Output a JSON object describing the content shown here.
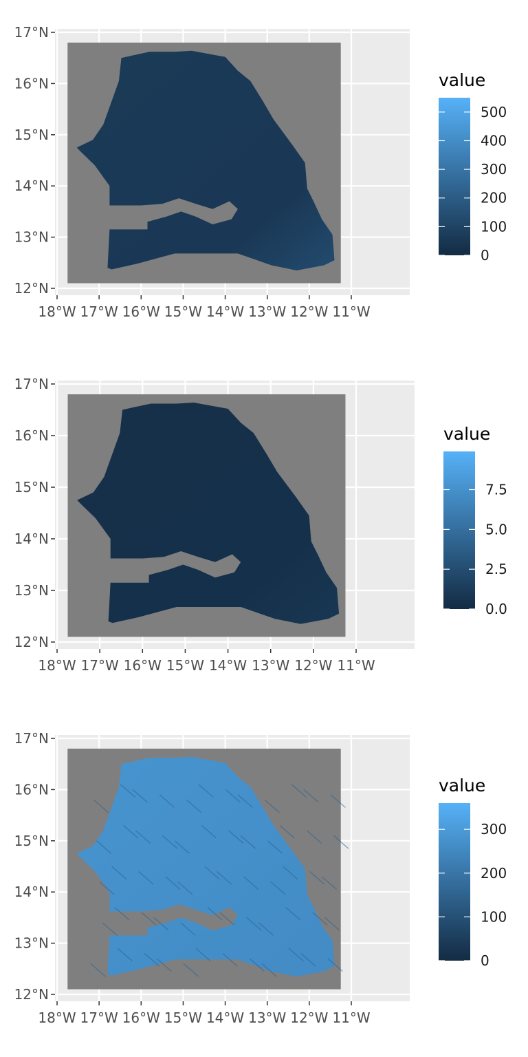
{
  "colors": {
    "panel_background": "#ebebeb",
    "gridline": "#ffffff",
    "na_value": "#7f7f7f",
    "scale_low": "#132b43",
    "scale_high": "#56b1f7",
    "tick_text": "#4d4d4d"
  },
  "chart_data": [
    {
      "type": "heatmap",
      "legend_title": "value",
      "legend_breaks": [
        {
          "value": 0,
          "label": "0"
        },
        {
          "value": 100,
          "label": "100"
        },
        {
          "value": 200,
          "label": "200"
        },
        {
          "value": 300,
          "label": "300"
        },
        {
          "value": 400,
          "label": "400"
        },
        {
          "value": 500,
          "label": "500"
        }
      ],
      "value_range": [
        0,
        550
      ],
      "x_ticks": [
        "18°W",
        "17°W",
        "16°W",
        "15°W",
        "14°W",
        "13°W",
        "12°W",
        "11°W"
      ],
      "y_ticks": [
        "12°N",
        "13°N",
        "14°N",
        "15°N",
        "16°N",
        "17°N"
      ],
      "xlim": [
        -18,
        -11
      ],
      "ylim": [
        12,
        17
      ],
      "typical_value": 60,
      "max_value": 550
    },
    {
      "type": "heatmap",
      "legend_title": "value",
      "legend_breaks": [
        {
          "value": 0,
          "label": "0.0"
        },
        {
          "value": 2.5,
          "label": "2.5"
        },
        {
          "value": 5.0,
          "label": "5.0"
        },
        {
          "value": 7.5,
          "label": "7.5"
        }
      ],
      "value_range": [
        0,
        9.9
      ],
      "x_ticks": [
        "18°W",
        "17°W",
        "16°W",
        "15°W",
        "14°W",
        "13°W",
        "12°W",
        "11°W"
      ],
      "y_ticks": [
        "12°N",
        "13°N",
        "14°N",
        "15°N",
        "16°N",
        "17°N"
      ],
      "xlim": [
        -18,
        -11
      ],
      "ylim": [
        12,
        17
      ],
      "typical_value": 0.4,
      "max_value": 9.9
    },
    {
      "type": "heatmap",
      "legend_title": "value",
      "legend_breaks": [
        {
          "value": 0,
          "label": "0"
        },
        {
          "value": 100,
          "label": "100"
        },
        {
          "value": 200,
          "label": "200"
        },
        {
          "value": 300,
          "label": "300"
        }
      ],
      "value_range": [
        0,
        360
      ],
      "x_ticks": [
        "18°W",
        "17°W",
        "16°W",
        "15°W",
        "14°W",
        "13°W",
        "12°W",
        "11°W"
      ],
      "y_ticks": [
        "12°N",
        "13°N",
        "14°N",
        "15°N",
        "16°N",
        "17°N"
      ],
      "xlim": [
        -18,
        -11
      ],
      "ylim": [
        12,
        17
      ],
      "typical_value": 250,
      "max_value": 360
    }
  ]
}
